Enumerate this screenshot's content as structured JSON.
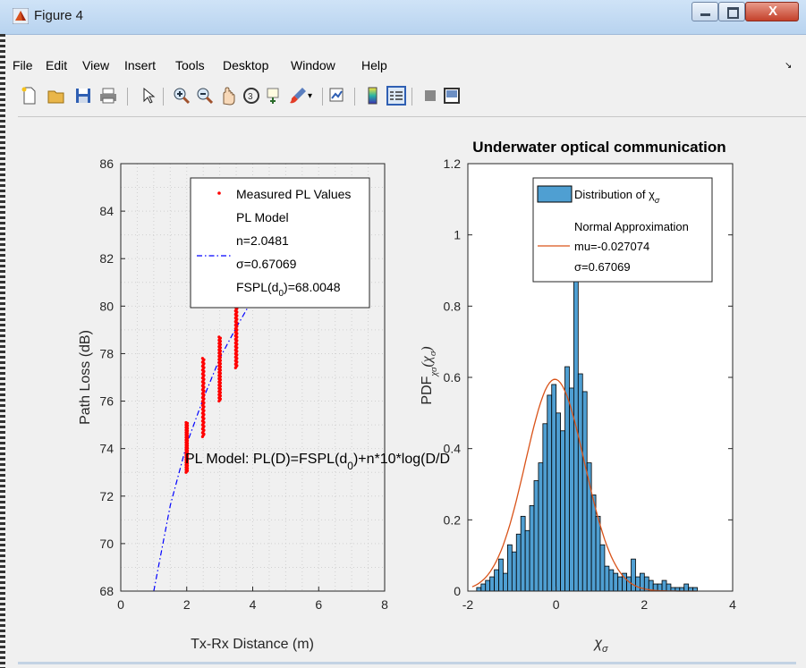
{
  "window": {
    "title": "Figure 4",
    "close_label": "X"
  },
  "menu": [
    "File",
    "Edit",
    "View",
    "Insert",
    "Tools",
    "Desktop",
    "Window",
    "Help"
  ],
  "toolbar": [
    "new-figure-icon",
    "open-file-icon",
    "save-icon",
    "print-icon",
    "pointer-icon",
    "zoom-in-icon",
    "zoom-out-icon",
    "pan-icon",
    "rotate-3d-icon",
    "data-cursor-icon",
    "brush-icon",
    "link-plot-icon",
    "colorbar-icon",
    "legend-icon",
    "hide-plot-tools-icon",
    "show-plot-tools-icon"
  ],
  "colors": {
    "measured": "#ff0000",
    "model": "#0000ff",
    "hist_fill": "#4f9fd2",
    "normal": "#d95319"
  },
  "chart_data": [
    {
      "type": "scatter",
      "title": "",
      "xlabel": "Tx-Rx Distance (m)",
      "ylabel": "Path Loss (dB)",
      "xlim": [
        0,
        8
      ],
      "ylim": [
        68,
        86
      ],
      "xticks": [
        "0",
        "2",
        "4",
        "6",
        "8"
      ],
      "yticks": [
        "68",
        "70",
        "72",
        "74",
        "76",
        "78",
        "80",
        "82",
        "84",
        "86"
      ],
      "grid": "minor-dotted",
      "series": [
        {
          "name": "Measured PL Values",
          "kind": "points",
          "clusters": [
            {
              "x": 2.0,
              "y_min": 73.0,
              "y_max": 75.1
            },
            {
              "x": 2.5,
              "y_min": 74.5,
              "y_max": 77.8
            },
            {
              "x": 3.0,
              "y_min": 76.0,
              "y_max": 78.7
            },
            {
              "x": 3.5,
              "y_min": 77.4,
              "y_max": 80.4
            }
          ]
        },
        {
          "name": "PL Model",
          "kind": "line",
          "x": [
            1.0,
            1.5,
            2.0,
            2.5,
            3.0,
            3.5,
            4.0,
            5.0,
            6.0,
            7.0
          ],
          "y": [
            68.0,
            71.6,
            74.2,
            76.1,
            77.8,
            79.1,
            80.3,
            82.3,
            83.9,
            85.3
          ]
        }
      ],
      "legend": {
        "position": "top-right",
        "lines": [
          "Measured PL Values",
          "PL Model",
          "n=2.0481",
          "σ=0.67069",
          "FSPL(d",
          "0",
          ")=68.0048"
        ]
      },
      "annotation": {
        "a": "PL Model: PL(D)=FSPL(d",
        "b": "0",
        "c": ")+n*10*log(D/D"
      }
    },
    {
      "type": "bar",
      "title": "Underwater optical communication",
      "xlabel": "χσ",
      "ylabel": "PDFχσ(χσ)",
      "xlim": [
        -2,
        4
      ],
      "ylim": [
        0,
        1.2
      ],
      "xticks": [
        "-2",
        "0",
        "2",
        "4"
      ],
      "yticks": [
        "0",
        "0.2",
        "0.4",
        "0.6",
        "0.8",
        "1",
        "1.2"
      ],
      "bin_start": -1.8,
      "bin_width": 0.1,
      "values": [
        0.01,
        0.02,
        0.03,
        0.04,
        0.06,
        0.09,
        0.05,
        0.13,
        0.11,
        0.16,
        0.21,
        0.17,
        0.24,
        0.31,
        0.36,
        0.47,
        0.55,
        0.58,
        0.5,
        0.45,
        0.63,
        0.57,
        0.95,
        0.61,
        0.56,
        0.36,
        0.27,
        0.21,
        0.13,
        0.07,
        0.06,
        0.05,
        0.04,
        0.05,
        0.04,
        0.09,
        0.04,
        0.05,
        0.04,
        0.03,
        0.02,
        0.02,
        0.03,
        0.02,
        0.01,
        0.01,
        0.01,
        0.02,
        0.01,
        0.01
      ],
      "normal_fit": {
        "mu": -0.027074,
        "sigma": 0.67069
      },
      "legend": {
        "position": "top-right",
        "lines": [
          "Distribution of χ",
          "σ",
          "Normal Approximation",
          "mu=-0.027074",
          "σ=0.67069"
        ]
      }
    }
  ]
}
